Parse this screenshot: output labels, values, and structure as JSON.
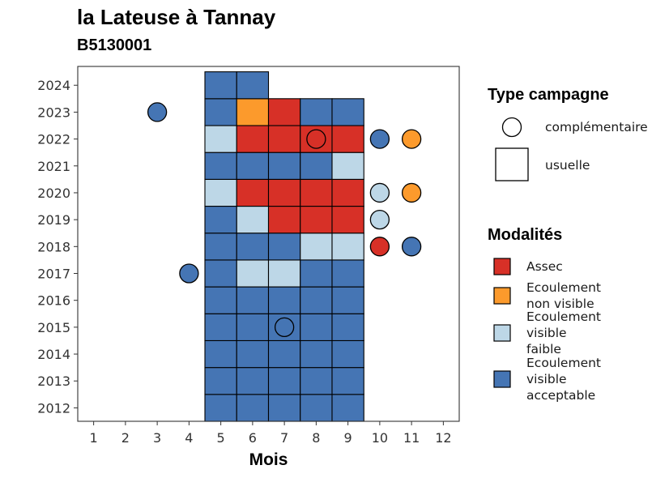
{
  "title": "la Lateuse à Tannay",
  "subtitle": "B5130001",
  "colors": {
    "Assec": "#D73027",
    "Ecoulement non visible": "#FC9A2C",
    "Ecoulement visible faible": "#BDD7E7",
    "Ecoulement visible acceptable": "#4575B4"
  },
  "chart_data": {
    "type": "heatmap",
    "xlabel": "Mois",
    "ylabel": "",
    "x_ticks": [
      1,
      2,
      3,
      4,
      5,
      6,
      7,
      8,
      9,
      10,
      11,
      12
    ],
    "y_ticks": [
      2012,
      2013,
      2014,
      2015,
      2016,
      2017,
      2018,
      2019,
      2020,
      2021,
      2022,
      2023,
      2024
    ],
    "xlim": [
      0.5,
      12.5
    ],
    "ylim": [
      2011.5,
      2024.7
    ],
    "grid": false,
    "legend_position": "right",
    "usuelle": [
      {
        "year": 2012,
        "values": {
          "5": "Ecoulement visible acceptable",
          "6": "Ecoulement visible acceptable",
          "7": "Ecoulement visible acceptable",
          "8": "Ecoulement visible acceptable",
          "9": "Ecoulement visible acceptable"
        }
      },
      {
        "year": 2013,
        "values": {
          "5": "Ecoulement visible acceptable",
          "6": "Ecoulement visible acceptable",
          "7": "Ecoulement visible acceptable",
          "8": "Ecoulement visible acceptable",
          "9": "Ecoulement visible acceptable"
        }
      },
      {
        "year": 2014,
        "values": {
          "5": "Ecoulement visible acceptable",
          "6": "Ecoulement visible acceptable",
          "7": "Ecoulement visible acceptable",
          "8": "Ecoulement visible acceptable",
          "9": "Ecoulement visible acceptable"
        }
      },
      {
        "year": 2015,
        "values": {
          "5": "Ecoulement visible acceptable",
          "6": "Ecoulement visible acceptable",
          "7": "Ecoulement visible acceptable",
          "8": "Ecoulement visible acceptable",
          "9": "Ecoulement visible acceptable"
        }
      },
      {
        "year": 2016,
        "values": {
          "5": "Ecoulement visible acceptable",
          "6": "Ecoulement visible acceptable",
          "7": "Ecoulement visible acceptable",
          "8": "Ecoulement visible acceptable",
          "9": "Ecoulement visible acceptable"
        }
      },
      {
        "year": 2017,
        "values": {
          "5": "Ecoulement visible acceptable",
          "6": "Ecoulement visible faible",
          "7": "Ecoulement visible faible",
          "8": "Ecoulement visible acceptable",
          "9": "Ecoulement visible acceptable"
        }
      },
      {
        "year": 2018,
        "values": {
          "5": "Ecoulement visible acceptable",
          "6": "Ecoulement visible acceptable",
          "7": "Ecoulement visible acceptable",
          "8": "Ecoulement visible faible",
          "9": "Ecoulement visible faible"
        }
      },
      {
        "year": 2019,
        "values": {
          "5": "Ecoulement visible acceptable",
          "6": "Ecoulement visible faible",
          "7": "Assec",
          "8": "Assec",
          "9": "Assec"
        }
      },
      {
        "year": 2020,
        "values": {
          "5": "Ecoulement visible faible",
          "6": "Assec",
          "7": "Assec",
          "8": "Assec",
          "9": "Assec"
        }
      },
      {
        "year": 2021,
        "values": {
          "5": "Ecoulement visible acceptable",
          "6": "Ecoulement visible acceptable",
          "7": "Ecoulement visible acceptable",
          "8": "Ecoulement visible acceptable",
          "9": "Ecoulement visible faible"
        }
      },
      {
        "year": 2022,
        "values": {
          "5": "Ecoulement visible faible",
          "6": "Assec",
          "7": "Assec",
          "8": "Assec",
          "9": "Assec"
        }
      },
      {
        "year": 2023,
        "values": {
          "5": "Ecoulement visible acceptable",
          "6": "Ecoulement non visible",
          "7": "Assec",
          "8": "Ecoulement visible acceptable",
          "9": "Ecoulement visible acceptable"
        }
      },
      {
        "year": 2024,
        "values": {
          "5": "Ecoulement visible acceptable",
          "6": "Ecoulement visible acceptable"
        }
      }
    ],
    "complementaire": [
      {
        "year": 2023,
        "month": 3,
        "value": "Ecoulement visible acceptable"
      },
      {
        "year": 2022,
        "month": 8,
        "value": "Assec"
      },
      {
        "year": 2022,
        "month": 10,
        "value": "Ecoulement visible acceptable"
      },
      {
        "year": 2022,
        "month": 11,
        "value": "Ecoulement non visible"
      },
      {
        "year": 2020,
        "month": 10,
        "value": "Ecoulement visible faible"
      },
      {
        "year": 2020,
        "month": 11,
        "value": "Ecoulement non visible"
      },
      {
        "year": 2019,
        "month": 10,
        "value": "Ecoulement visible faible"
      },
      {
        "year": 2018,
        "month": 10,
        "value": "Assec"
      },
      {
        "year": 2018,
        "month": 11,
        "value": "Ecoulement visible acceptable"
      },
      {
        "year": 2017,
        "month": 4,
        "value": "Ecoulement visible acceptable"
      },
      {
        "year": 2015,
        "month": 7,
        "value": "Ecoulement visible acceptable"
      }
    ]
  },
  "legend": {
    "type_title": "Type campagne",
    "type_items": [
      {
        "shape": "circle",
        "label": "complémentaire"
      },
      {
        "shape": "square",
        "label": "usuelle"
      }
    ],
    "mod_title": "Modalités",
    "mod_items": [
      {
        "key": "Assec",
        "lines": [
          "Assec"
        ]
      },
      {
        "key": "Ecoulement non visible",
        "lines": [
          "Ecoulement",
          "non visible"
        ]
      },
      {
        "key": "Ecoulement visible faible",
        "lines": [
          "Ecoulement",
          "visible",
          "faible"
        ]
      },
      {
        "key": "Ecoulement visible acceptable",
        "lines": [
          "Ecoulement",
          "visible",
          "acceptable"
        ]
      }
    ]
  }
}
